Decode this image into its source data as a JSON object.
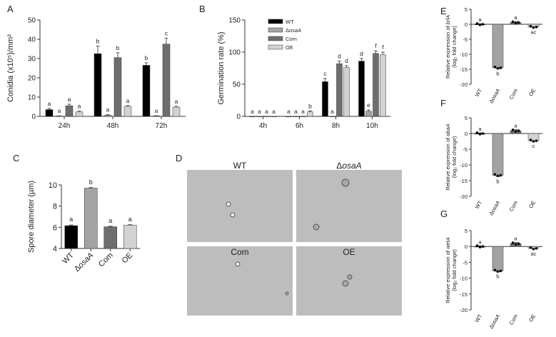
{
  "colors": {
    "WT": "#000000",
    "osaA": "#a3a3a3",
    "Com": "#6e6e6e",
    "OE": "#d2d2d2"
  },
  "chart_data": [
    {
      "panel": "A",
      "type": "bar",
      "ylabel": "Conidia (x10⁵)/mm²",
      "ylim": [
        0,
        50
      ],
      "yticks": [
        0,
        10,
        20,
        30,
        40,
        50
      ],
      "categories": [
        "24h",
        "48h",
        "72h"
      ],
      "series": [
        {
          "name": "WT",
          "values": [
            3.5,
            32.5,
            26.5
          ],
          "errors": [
            0.6,
            4,
            1.3
          ],
          "letters": [
            "a",
            "b",
            "b"
          ]
        },
        {
          "name": "ΔosaA",
          "values": [
            0.2,
            0.6,
            0.3
          ],
          "errors": [
            0.1,
            0.3,
            0.1
          ],
          "letters": [
            "a",
            "a",
            "a"
          ]
        },
        {
          "name": "Com",
          "values": [
            5.5,
            30.5,
            37.5
          ],
          "errors": [
            0.8,
            2.5,
            3
          ],
          "letters": [
            "a",
            "b",
            "c"
          ]
        },
        {
          "name": "OE",
          "values": [
            2.3,
            5.2,
            4.8
          ],
          "errors": [
            0.4,
            0.4,
            0.4
          ],
          "letters": [
            "a",
            "a",
            "a"
          ]
        }
      ]
    },
    {
      "panel": "B",
      "type": "bar",
      "ylabel": "Germination rate (%)",
      "ylim": [
        0,
        150
      ],
      "yticks": [
        0,
        50,
        100,
        150
      ],
      "categories": [
        "4h",
        "6h",
        "8h",
        "10h"
      ],
      "series": [
        {
          "name": "WT",
          "values": [
            0,
            0,
            54,
            86
          ],
          "errors": [
            0,
            0,
            5,
            4
          ],
          "letters": [
            "a",
            "a",
            "c",
            "d"
          ]
        },
        {
          "name": "ΔosaA",
          "values": [
            0,
            0,
            0,
            8
          ],
          "errors": [
            0,
            0,
            0,
            2
          ],
          "letters": [
            "a",
            "a",
            "a",
            "e"
          ]
        },
        {
          "name": "Com",
          "values": [
            0,
            0,
            82,
            98
          ],
          "errors": [
            0,
            0,
            4,
            4
          ],
          "letters": [
            "a",
            "a",
            "d",
            "f"
          ]
        },
        {
          "name": "OE",
          "values": [
            0,
            7,
            76,
            96
          ],
          "errors": [
            0,
            1.5,
            3,
            4
          ],
          "letters": [
            "a",
            "b",
            "d",
            "f"
          ]
        }
      ]
    },
    {
      "panel": "C",
      "type": "bar",
      "ylabel": "Spore diameter (µm)",
      "ylim": [
        4,
        10
      ],
      "yticks": [
        4,
        6,
        8,
        10
      ],
      "categories": [
        "WT",
        "ΔosaA",
        "Com",
        "OE"
      ],
      "values": [
        6.15,
        9.7,
        6.05,
        6.2
      ],
      "errors": [
        0.06,
        0.04,
        0.04,
        0.04
      ],
      "letters": [
        "a",
        "b",
        "a",
        "a"
      ]
    },
    {
      "panel": "E",
      "type": "bar",
      "gene": "brlA",
      "ylabel": "Relative expression of brlA",
      "ylabel2": "(log₂ fold change)",
      "ylim": [
        -20,
        5
      ],
      "yticks": [
        5,
        0,
        -5,
        -10,
        -15,
        -20
      ],
      "categories": [
        "WT",
        "ΔosaA",
        "Com",
        "OE"
      ],
      "values": [
        0,
        -14.5,
        0.6,
        -0.9
      ],
      "errors": [
        0.2,
        0.4,
        0.3,
        0.2
      ],
      "letters": [
        "a",
        "b",
        "a",
        "ac"
      ]
    },
    {
      "panel": "F",
      "type": "bar",
      "gene": "abaA",
      "ylabel": "Relative expression of abaA",
      "ylabel2": "(log₂ fold change)",
      "ylim": [
        -20,
        5
      ],
      "yticks": [
        5,
        0,
        -5,
        -10,
        -15,
        -20
      ],
      "categories": [
        "WT",
        "ΔosaA",
        "Com",
        "OE"
      ],
      "values": [
        0,
        -13.3,
        0.9,
        -2.3
      ],
      "errors": [
        0.2,
        0.4,
        0.4,
        0.2
      ],
      "letters": [
        "a",
        "b",
        "a",
        "c"
      ]
    },
    {
      "panel": "G",
      "type": "bar",
      "gene": "wetA",
      "ylabel": "Relative expression of wetA",
      "ylabel2": "(log₂ fold change)",
      "ylim": [
        -20,
        5
      ],
      "yticks": [
        5,
        0,
        -5,
        -10,
        -15,
        -20
      ],
      "categories": [
        "WT",
        "ΔosaA",
        "Com",
        "OE"
      ],
      "values": [
        0,
        -7.7,
        0.9,
        -0.6
      ],
      "errors": [
        0.2,
        0.3,
        0.4,
        0.2
      ],
      "letters": [
        "a",
        "b",
        "a",
        "ac"
      ]
    }
  ],
  "panel_D": {
    "label": "D",
    "images": [
      {
        "caption": "WT"
      },
      {
        "caption": "ΔosaA"
      },
      {
        "caption": "Com"
      },
      {
        "caption": "OE"
      }
    ]
  }
}
